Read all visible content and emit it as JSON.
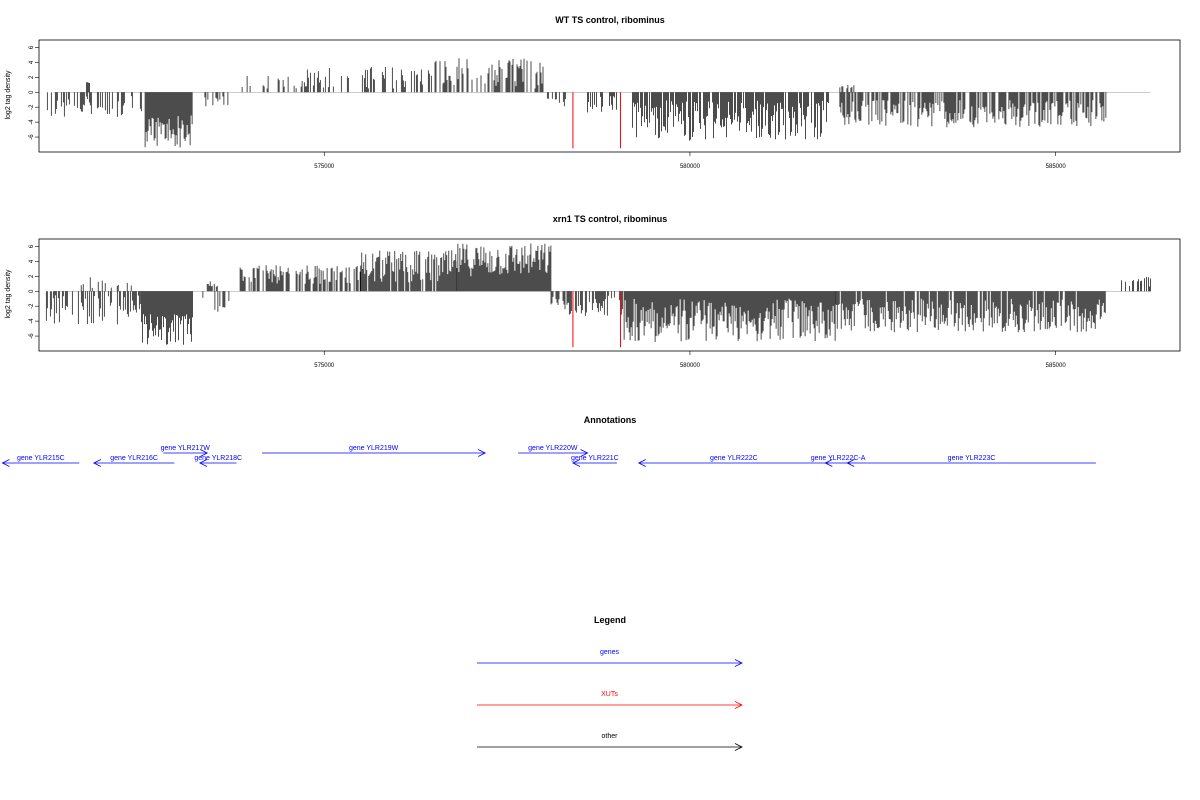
{
  "chart_data": [
    {
      "type": "bar",
      "title": "WT TS control, ribominus",
      "ylabel": "log2 tag density",
      "xlabel": "",
      "xlim": [
        571100,
        586700
      ],
      "ylim": [
        -8,
        7
      ],
      "yticks": [
        -6,
        -4,
        -2,
        0,
        2,
        4,
        6
      ],
      "xticks": [
        575000,
        580000,
        585000
      ],
      "xtick_labels": [
        "575000",
        "580000",
        "585000"
      ],
      "segments": [
        {
          "start": 571200,
          "end": 572500,
          "sign": -1,
          "min": 0.5,
          "max": 3.5,
          "density": 0.45
        },
        {
          "start": 571750,
          "end": 571800,
          "sign": 1,
          "min": 1.2,
          "max": 1.6,
          "density": 1
        },
        {
          "start": 572550,
          "end": 573200,
          "sign": -1,
          "min": 3.0,
          "max": 7.5,
          "density": 1
        },
        {
          "start": 573300,
          "end": 573700,
          "sign": -1,
          "min": 0.5,
          "max": 2.0,
          "density": 0.35
        },
        {
          "start": 573850,
          "end": 574700,
          "sign": 1,
          "min": 0.5,
          "max": 2.2,
          "density": 0.4
        },
        {
          "start": 574700,
          "end": 576500,
          "sign": 1,
          "min": 0.5,
          "max": 3.5,
          "density": 0.35
        },
        {
          "start": 576500,
          "end": 578000,
          "sign": 1,
          "min": 0.5,
          "max": 4.6,
          "density": 0.6
        },
        {
          "start": 578050,
          "end": 578300,
          "sign": -1,
          "min": 0.5,
          "max": 2.0,
          "density": 0.5
        },
        {
          "start": 578600,
          "end": 579000,
          "sign": -1,
          "min": 0.5,
          "max": 3.0,
          "density": 0.5
        },
        {
          "start": 579200,
          "end": 581900,
          "sign": -1,
          "min": 1.0,
          "max": 6.5,
          "density": 0.85
        },
        {
          "start": 582050,
          "end": 582250,
          "sign": 1,
          "min": 0.4,
          "max": 1.0,
          "density": 0.5
        },
        {
          "start": 582050,
          "end": 585700,
          "sign": -1,
          "min": 1.0,
          "max": 4.7,
          "density": 0.75
        }
      ],
      "xuts": [
        {
          "x": 578400,
          "y": -7.5
        },
        {
          "x": 579050,
          "y": -7.5
        }
      ],
      "baseline": [
        571300,
        586300
      ]
    },
    {
      "type": "bar",
      "title": "xrn1 TS control, ribominus",
      "ylabel": "log2 tag density",
      "xlabel": "",
      "xlim": [
        571100,
        586700
      ],
      "ylim": [
        -8,
        7
      ],
      "yticks": [
        -6,
        -4,
        -2,
        0,
        2,
        4,
        6
      ],
      "xticks": [
        575000,
        580000,
        585000
      ],
      "xtick_labels": [
        "575000",
        "580000",
        "585000"
      ],
      "segments": [
        {
          "start": 571200,
          "end": 572500,
          "sign": -1,
          "min": 0.5,
          "max": 4.5,
          "density": 0.5
        },
        {
          "start": 571650,
          "end": 572400,
          "sign": 1,
          "min": 0.3,
          "max": 2.0,
          "density": 0.3
        },
        {
          "start": 572500,
          "end": 573200,
          "sign": -1,
          "min": 3.0,
          "max": 7.2,
          "density": 1
        },
        {
          "start": 573300,
          "end": 573700,
          "sign": -1,
          "min": 0.5,
          "max": 3.2,
          "density": 0.4
        },
        {
          "start": 573400,
          "end": 573550,
          "sign": 1,
          "min": 0.5,
          "max": 1.4,
          "density": 0.6
        },
        {
          "start": 573850,
          "end": 575500,
          "sign": 1,
          "min": 1.0,
          "max": 3.5,
          "density": 0.7
        },
        {
          "start": 575500,
          "end": 576800,
          "sign": 1,
          "min": 1.0,
          "max": 5.5,
          "density": 0.85
        },
        {
          "start": 576800,
          "end": 578100,
          "sign": 1,
          "min": 2.0,
          "max": 6.5,
          "density": 1
        },
        {
          "start": 578100,
          "end": 578350,
          "sign": -1,
          "min": 0.5,
          "max": 2.5,
          "density": 0.5
        },
        {
          "start": 578350,
          "end": 579100,
          "sign": -1,
          "min": 0.5,
          "max": 3.5,
          "density": 0.6
        },
        {
          "start": 579100,
          "end": 582000,
          "sign": -1,
          "min": 1.0,
          "max": 6.8,
          "density": 1
        },
        {
          "start": 582000,
          "end": 585700,
          "sign": -1,
          "min": 1.0,
          "max": 5.5,
          "density": 0.9
        },
        {
          "start": 585900,
          "end": 586300,
          "sign": 1,
          "min": 0.5,
          "max": 2.0,
          "density": 0.4
        }
      ],
      "xuts": [
        {
          "x": 578400,
          "y": -7.5
        },
        {
          "x": 579050,
          "y": -7.5
        }
      ],
      "baseline": [
        571300,
        586300
      ]
    }
  ],
  "annotations": {
    "title": "Annotations",
    "genes": [
      {
        "label": "gene YLR215C",
        "start": 571650,
        "end": 570600,
        "row": 1
      },
      {
        "label": "gene YLR216C",
        "start": 572950,
        "end": 571850,
        "row": 1
      },
      {
        "label": "gene YLR217W",
        "start": 572800,
        "end": 573400,
        "row": 0
      },
      {
        "label": "gene YLR218C",
        "start": 573800,
        "end": 573300,
        "row": 1
      },
      {
        "label": "gene YLR219W",
        "start": 574150,
        "end": 577200,
        "row": 0
      },
      {
        "label": "gene YLR220W",
        "start": 577650,
        "end": 578600,
        "row": 0
      },
      {
        "label": "gene YLR221C",
        "start": 579000,
        "end": 578400,
        "row": 1
      },
      {
        "label": "gene YLR222C",
        "start": 581900,
        "end": 579300,
        "row": 1
      },
      {
        "label": "gene YLR222C-A",
        "start": 582200,
        "end": 581850,
        "row": 1
      },
      {
        "label": "gene YLR223C",
        "start": 585550,
        "end": 582150,
        "row": 1
      }
    ]
  },
  "legend": {
    "title": "Legend",
    "items": [
      {
        "label": "genes",
        "color": "#0000ff"
      },
      {
        "label": "XUTs",
        "color": "#ff0000"
      },
      {
        "label": "other",
        "color": "#000000"
      }
    ]
  }
}
